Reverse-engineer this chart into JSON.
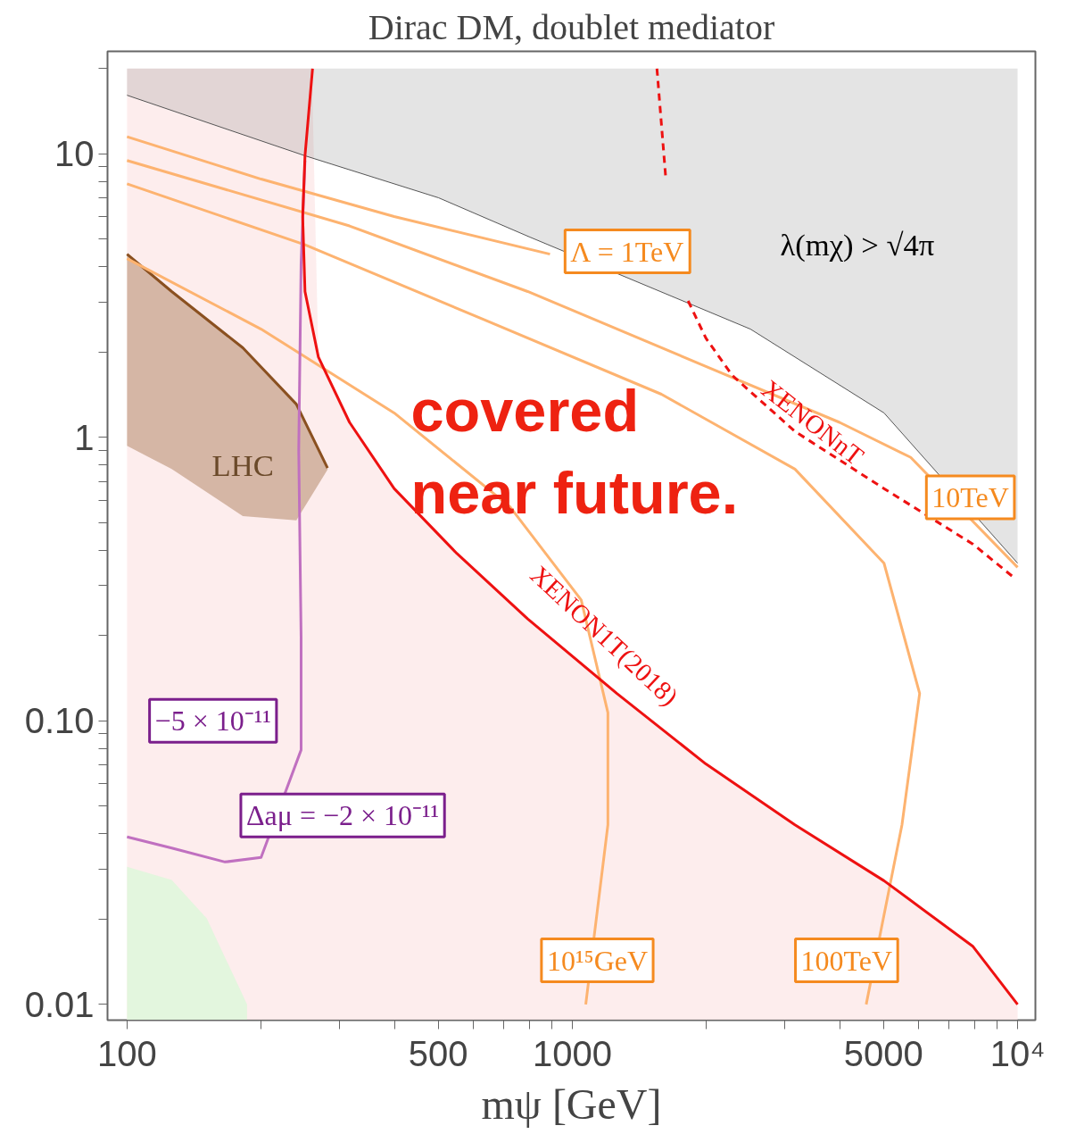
{
  "chart_data": {
    "type": "line",
    "title": "Dirac DM, doublet mediator",
    "xlabel": "mψ [GeV]",
    "log": "xy",
    "grid": false,
    "xlim": [
      90.4,
      10965
    ],
    "ylim": [
      0.0088,
      23
    ],
    "xticks": [
      100,
      {
        "value": 200,
        "label": null
      },
      {
        "value": 300,
        "label": null
      },
      {
        "value": 400,
        "label": null
      },
      500,
      {
        "value": 600,
        "label": null
      },
      {
        "value": 700,
        "label": null
      },
      {
        "value": 800,
        "label": null
      },
      {
        "value": 900,
        "label": null
      },
      1000,
      {
        "value": 2000,
        "label": null
      },
      {
        "value": 3000,
        "label": null
      },
      {
        "value": 4000,
        "label": null
      },
      5000,
      {
        "value": 6000,
        "label": null
      },
      {
        "value": 7000,
        "label": null
      },
      {
        "value": 8000,
        "label": null
      },
      {
        "value": 9000,
        "label": null
      },
      {
        "value": 10000,
        "label": "10⁴"
      }
    ],
    "yticks": [
      0.01,
      {
        "value": 0.02,
        "label": null
      },
      {
        "value": 0.03,
        "label": null
      },
      {
        "value": 0.04,
        "label": null
      },
      {
        "value": 0.05,
        "label": null
      },
      {
        "value": 0.06,
        "label": null
      },
      {
        "value": 0.07,
        "label": null
      },
      {
        "value": 0.08,
        "label": null
      },
      {
        "value": 0.09,
        "label": null
      },
      {
        "value": 0.1,
        "label": "0.10"
      },
      {
        "value": 0.2,
        "label": null
      },
      {
        "value": 0.3,
        "label": null
      },
      {
        "value": 0.4,
        "label": null
      },
      {
        "value": 0.5,
        "label": null
      },
      {
        "value": 0.6,
        "label": null
      },
      {
        "value": 0.7,
        "label": null
      },
      {
        "value": 0.8,
        "label": null
      },
      {
        "value": 0.9,
        "label": null
      },
      1,
      {
        "value": 2,
        "label": null
      },
      {
        "value": 3,
        "label": null
      },
      {
        "value": 4,
        "label": null
      },
      {
        "value": 5,
        "label": null
      },
      {
        "value": 6,
        "label": null
      },
      {
        "value": 7,
        "label": null
      },
      {
        "value": 8,
        "label": null
      },
      {
        "value": 9,
        "label": null
      },
      10,
      {
        "value": 20,
        "label": null
      }
    ],
    "series": [
      {
        "type": "area",
        "color": "#fde9e9",
        "x": [
          100,
          260,
          269,
          316,
          398,
          550,
          794,
          1259,
          1995,
          3162,
          5012,
          7943,
          10000
        ],
        "values": [
          20,
          20,
          1.92,
          1.13,
          0.66,
          0.39,
          0.229,
          0.125,
          0.0705,
          0.043,
          0.0273,
          0.016,
          0.01
        ]
      },
      {
        "color": "#555555",
        "x": [
          100,
          251,
          501,
          800,
          2512,
          5012,
          10000
        ],
        "values": [
          16.1,
          9.85,
          7.0,
          5.1,
          2.41,
          1.22,
          0.36
        ],
        "lower": [
          16.1,
          9.85,
          7.0,
          5.1,
          2.41,
          1.22,
          0.36
        ],
        "upper": [
          20,
          20,
          20,
          20,
          20,
          20,
          20
        ]
      },
      {
        "type": "area",
        "color": "#dcf8da",
        "x": [
          100,
          126,
          151,
          186
        ],
        "values": [
          0.0306,
          0.0275,
          0.0201,
          0.01
        ]
      },
      {
        "color": "#8a5020",
        "x": [
          100,
          126,
          182,
          240,
          282
        ],
        "values": [
          4.43,
          3.27,
          2.07,
          1.31,
          0.78
        ],
        "lower": [
          0.934,
          0.773,
          0.528,
          0.51,
          0.77
        ],
        "upper": [
          4.43,
          3.27,
          2.07,
          1.31,
          0.78
        ]
      },
      {
        "color": "#fdb370",
        "x": [
          100,
          200,
          398,
          891
        ],
        "values": [
          11.5,
          8.15,
          6.01,
          4.43
        ]
      },
      {
        "color": "#fdb370",
        "x": [
          100,
          316,
          794,
          1995,
          3981,
          5754,
          10000
        ],
        "values": [
          9.48,
          5.57,
          3.27,
          1.78,
          1.13,
          0.85,
          0.348
        ]
      },
      {
        "color": "#fdb370",
        "x": [
          100,
          251,
          631,
          1585,
          3162,
          5012,
          6026,
          5500,
          4571
        ],
        "values": [
          7.84,
          4.78,
          2.61,
          1.42,
          0.773,
          0.36,
          0.125,
          0.043,
          0.01
        ]
      },
      {
        "color": "#fdb370",
        "x": [
          100,
          200,
          398,
          724,
          1047,
          1202,
          1202,
          1072
        ],
        "values": [
          4.27,
          2.41,
          1.22,
          0.57,
          0.267,
          0.107,
          0.043,
          0.01
        ]
      },
      {
        "color": "#c070c0",
        "x": [
          251,
          246,
          243,
          246,
          246,
          200,
          166,
          126,
          100
        ],
        "values": [
          9.48,
          4.11,
          0.9,
          0.197,
          0.079,
          0.033,
          0.0318,
          0.0356,
          0.039
        ]
      },
      {
        "color": "#ee1111",
        "x": [
          261,
          251,
          248,
          251,
          269,
          316,
          398,
          550,
          794,
          1259,
          1995,
          3162,
          5012,
          7943,
          10000
        ],
        "values": [
          20,
          9.85,
          6.01,
          3.27,
          1.92,
          1.13,
          0.66,
          0.39,
          0.229,
          0.125,
          0.0705,
          0.043,
          0.0273,
          0.016,
          0.01
        ]
      },
      {
        "color": "#ee1111",
        "line_style": "dashed",
        "x": [
          1549,
          1622,
          1660,
          1820,
          1995,
          2138,
          2291,
          3162,
          5012,
          7943,
          9772
        ],
        "values": [
          20,
          8.15,
          null,
          3.03,
          2.24,
          1.92,
          1.65,
          1.05,
          0.66,
          0.42,
          0.322
        ]
      }
    ],
    "annotations": [
      "Λ = 1TeV",
      "10TeV",
      "10¹⁵GeV",
      "100TeV",
      "λ(mχ) > √4π",
      "LHC",
      "−5 × 10⁻¹¹",
      "Δaμ = −2 × 10⁻¹¹",
      "XENON1T(2018)",
      "XENONnT",
      "covered\nnear future."
    ]
  }
}
